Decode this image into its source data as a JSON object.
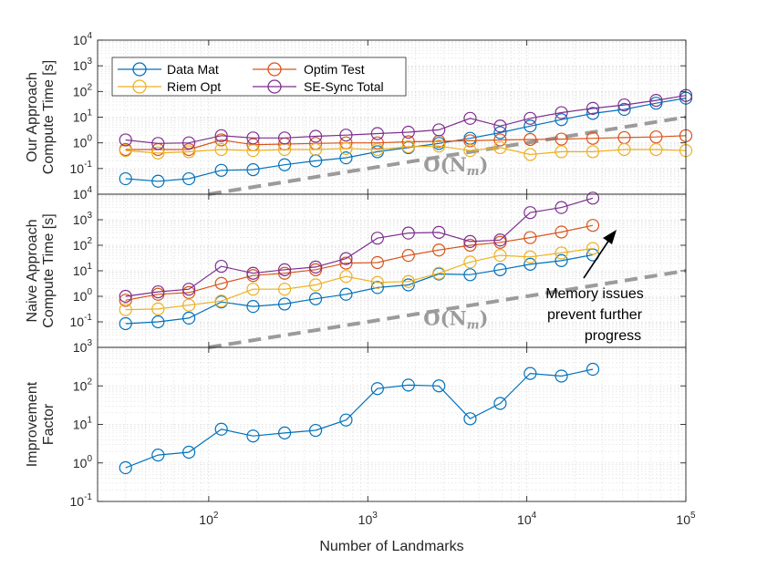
{
  "chart_data": [
    {
      "type": "line",
      "id": "our",
      "ylabel_lines": [
        "Our Approach",
        "Compute Time [s]"
      ],
      "xscale": "log",
      "yscale": "log",
      "xlim": [
        20,
        100000
      ],
      "ylim": [
        0.01,
        10000
      ],
      "grid": true,
      "legend": {
        "placement": "top-left",
        "entries": [
          "Data Mat",
          "Optim Test",
          "Riem Opt",
          "SE-Sync Total"
        ]
      },
      "reference_line": {
        "label": "O(N_m)",
        "x": [
          100,
          100000
        ],
        "y": [
          0.01,
          10
        ]
      },
      "series": [
        {
          "name": "Data Mat",
          "color": "#0072BD",
          "x": [
            30,
            48,
            75,
            120,
            190,
            300,
            470,
            730,
            1150,
            1800,
            2800,
            4400,
            6800,
            10500,
            16500,
            26000,
            41000,
            65000,
            100000
          ],
          "y": [
            0.04,
            0.032,
            0.04,
            0.085,
            0.09,
            0.14,
            0.2,
            0.26,
            0.45,
            0.65,
            0.95,
            1.5,
            2.5,
            4.5,
            8,
            14,
            20,
            35,
            55
          ]
        },
        {
          "name": "Optim Test",
          "color": "#D95319",
          "x": [
            30,
            48,
            75,
            120,
            190,
            300,
            470,
            730,
            1150,
            1800,
            2800,
            4400,
            6800,
            10500,
            16500,
            26000,
            41000,
            65000,
            100000
          ],
          "y": [
            0.55,
            0.55,
            0.55,
            1.3,
            0.85,
            0.9,
            0.95,
            1.0,
            1.0,
            1.1,
            1.15,
            1.2,
            1.3,
            1.35,
            1.4,
            1.5,
            1.6,
            1.7,
            1.9
          ]
        },
        {
          "name": "Riem Opt",
          "color": "#EDB120",
          "x": [
            30,
            48,
            75,
            120,
            190,
            300,
            470,
            730,
            1150,
            1800,
            2800,
            4400,
            6800,
            10500,
            16500,
            26000,
            41000,
            65000,
            100000
          ],
          "y": [
            0.5,
            0.4,
            0.45,
            0.55,
            0.5,
            0.55,
            0.55,
            0.6,
            0.55,
            0.7,
            0.75,
            0.5,
            0.65,
            0.35,
            0.45,
            0.45,
            0.55,
            0.55,
            0.5
          ]
        },
        {
          "name": "SE-Sync Total",
          "color": "#7E2F8E",
          "x": [
            30,
            48,
            75,
            120,
            190,
            300,
            470,
            730,
            1150,
            1800,
            2800,
            4400,
            6800,
            10500,
            16500,
            26000,
            41000,
            65000,
            100000
          ],
          "y": [
            1.3,
            0.95,
            1.0,
            1.9,
            1.55,
            1.55,
            1.8,
            2.0,
            2.3,
            2.6,
            3.2,
            9.0,
            4.5,
            9.0,
            15,
            22,
            30,
            45,
            70
          ]
        }
      ]
    },
    {
      "type": "line",
      "id": "naive",
      "ylabel_lines": [
        "Naive Approach",
        "Compute Time [s]"
      ],
      "xscale": "log",
      "yscale": "log",
      "xlim": [
        20,
        100000
      ],
      "ylim": [
        0.01,
        10000
      ],
      "grid": true,
      "reference_line": {
        "label": "O(N_m)",
        "x": [
          100,
          100000
        ],
        "y": [
          0.01,
          10
        ]
      },
      "annotation": {
        "lines": [
          "Memory issues",
          "prevent further",
          "progress"
        ],
        "arrow": "up-right"
      },
      "series": [
        {
          "name": "Data Mat",
          "color": "#0072BD",
          "x": [
            30,
            48,
            75,
            120,
            190,
            300,
            470,
            730,
            1150,
            1800,
            2800,
            4400,
            6800,
            10500,
            16500,
            26000
          ],
          "y": [
            0.085,
            0.1,
            0.14,
            0.6,
            0.4,
            0.5,
            0.8,
            1.2,
            2.2,
            2.8,
            7.5,
            7.0,
            11,
            18,
            25,
            42
          ]
        },
        {
          "name": "Optim Test",
          "color": "#D95319",
          "x": [
            30,
            48,
            75,
            120,
            190,
            300,
            470,
            730,
            1150,
            1800,
            2800,
            4400,
            6800,
            10500,
            16500,
            26000
          ],
          "y": [
            0.7,
            1.2,
            1.4,
            3.2,
            6.5,
            8,
            11,
            20,
            21,
            40,
            65,
            100,
            130,
            200,
            330,
            600
          ]
        },
        {
          "name": "Riem Opt",
          "color": "#EDB120",
          "x": [
            30,
            48,
            75,
            120,
            190,
            300,
            470,
            730,
            1150,
            1800,
            2800,
            4400,
            6800,
            10500,
            16500,
            26000
          ],
          "y": [
            0.3,
            0.32,
            0.45,
            0.65,
            1.9,
            1.9,
            2.8,
            6.0,
            3.5,
            3.8,
            8,
            22,
            40,
            35,
            50,
            75
          ]
        },
        {
          "name": "SE-Sync Total",
          "color": "#7E2F8E",
          "x": [
            30,
            48,
            75,
            120,
            190,
            300,
            470,
            730,
            1150,
            1800,
            2800,
            4400,
            6800,
            10500,
            16500,
            26000
          ],
          "y": [
            1.0,
            1.5,
            1.9,
            15,
            8,
            11,
            14,
            30,
            190,
            300,
            320,
            140,
            160,
            1900,
            3000,
            7000
          ]
        }
      ]
    },
    {
      "type": "line",
      "id": "improvement",
      "ylabel_lines": [
        "Improvement",
        "Factor"
      ],
      "xlabel": "Number of Landmarks",
      "xscale": "log",
      "yscale": "log",
      "xlim": [
        20,
        100000
      ],
      "ylim": [
        0.1,
        1000
      ],
      "grid": true,
      "series": [
        {
          "name": "Improvement Factor",
          "color": "#0072BD",
          "x": [
            30,
            48,
            75,
            120,
            190,
            300,
            470,
            730,
            1150,
            1800,
            2800,
            4400,
            6800,
            10500,
            16500,
            26000
          ],
          "y": [
            0.75,
            1.6,
            1.9,
            7.5,
            5.0,
            6.0,
            7.0,
            13,
            85,
            105,
            100,
            14,
            35,
            210,
            180,
            270
          ]
        }
      ]
    }
  ],
  "axis_ticks": {
    "x": [
      {
        "base": "10",
        "exp": "2"
      },
      {
        "base": "10",
        "exp": "3"
      },
      {
        "base": "10",
        "exp": "4"
      },
      {
        "base": "10",
        "exp": "5"
      }
    ],
    "y_top": [
      {
        "base": "10",
        "exp": "-1"
      },
      {
        "base": "10",
        "exp": "0"
      },
      {
        "base": "10",
        "exp": "1"
      },
      {
        "base": "10",
        "exp": "2"
      },
      {
        "base": "10",
        "exp": "3"
      },
      {
        "base": "10",
        "exp": "4"
      }
    ],
    "y_mid": [
      {
        "base": "10",
        "exp": "-1"
      },
      {
        "base": "10",
        "exp": "0"
      },
      {
        "base": "10",
        "exp": "1"
      },
      {
        "base": "10",
        "exp": "2"
      },
      {
        "base": "10",
        "exp": "3"
      },
      {
        "base": "10",
        "exp": "4"
      }
    ],
    "y_bot": [
      {
        "base": "10",
        "exp": "-1"
      },
      {
        "base": "10",
        "exp": "0"
      },
      {
        "base": "10",
        "exp": "1"
      },
      {
        "base": "10",
        "exp": "2"
      },
      {
        "base": "10",
        "exp": "3"
      }
    ]
  }
}
